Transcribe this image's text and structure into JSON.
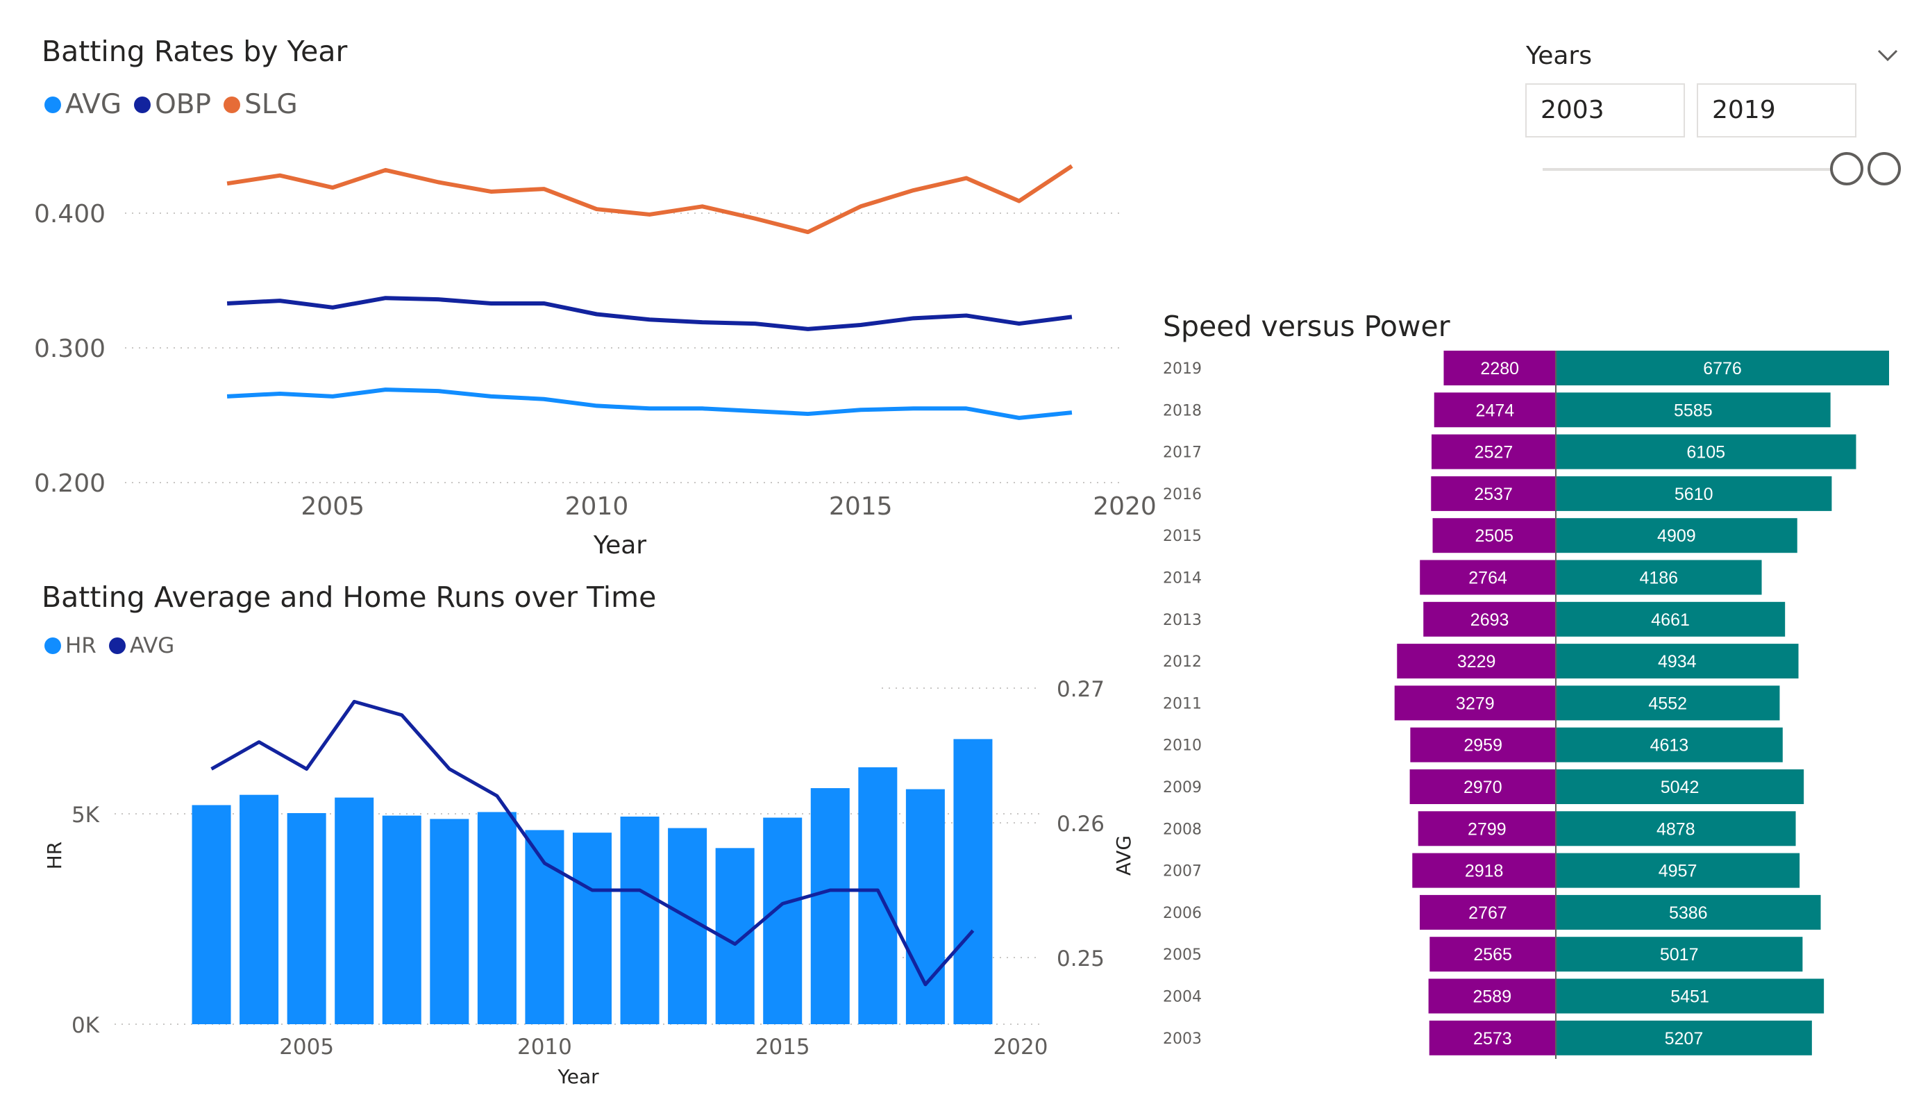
{
  "slicer": {
    "label": "Years",
    "start": "2003",
    "end": "2019",
    "icon": "chevron-down-icon"
  },
  "chart_data": [
    {
      "type": "line",
      "title": "Batting Rates by Year",
      "xlabel": "Year",
      "ylabel": "",
      "x": [
        2003,
        2004,
        2005,
        2006,
        2007,
        2008,
        2009,
        2010,
        2011,
        2012,
        2013,
        2014,
        2015,
        2016,
        2017,
        2018,
        2019
      ],
      "xticks": [
        "2005",
        "2010",
        "2015",
        "2020"
      ],
      "xlim": [
        2001,
        2020
      ],
      "yticks": [
        "0.200",
        "0.300",
        "0.400"
      ],
      "ylim": [
        0.2,
        0.45
      ],
      "grid": true,
      "legend": "top-left",
      "series": [
        {
          "name": "AVG",
          "color": "#118DFF",
          "values": [
            0.264,
            0.266,
            0.264,
            0.269,
            0.268,
            0.264,
            0.262,
            0.257,
            0.255,
            0.255,
            0.253,
            0.251,
            0.254,
            0.255,
            0.255,
            0.248,
            0.252
          ]
        },
        {
          "name": "OBP",
          "color": "#12239E",
          "values": [
            0.333,
            0.335,
            0.33,
            0.337,
            0.336,
            0.333,
            0.333,
            0.325,
            0.321,
            0.319,
            0.318,
            0.314,
            0.317,
            0.322,
            0.324,
            0.318,
            0.323
          ]
        },
        {
          "name": "SLG",
          "color": "#E66C37",
          "values": [
            0.422,
            0.428,
            0.419,
            0.432,
            0.423,
            0.416,
            0.418,
            0.403,
            0.399,
            0.405,
            0.396,
            0.386,
            0.405,
            0.417,
            0.426,
            0.409,
            0.435
          ]
        }
      ]
    },
    {
      "type": "bar",
      "title": "Batting Average and Home Runs over Time",
      "xlabel": "Year",
      "ylabel": "HR",
      "y2label": "AVG",
      "x": [
        2003,
        2004,
        2005,
        2006,
        2007,
        2008,
        2009,
        2010,
        2011,
        2012,
        2013,
        2014,
        2015,
        2016,
        2017,
        2018,
        2019
      ],
      "xticks": [
        "2005",
        "2010",
        "2015",
        "2020"
      ],
      "xlim": [
        2000.6,
        2020
      ],
      "yticks": [
        "0K",
        "5K"
      ],
      "ylim": [
        0,
        8000
      ],
      "y2ticks": [
        "0.25",
        "0.26",
        "0.27"
      ],
      "y2lim": [
        0.2425,
        0.2715
      ],
      "grid": true,
      "legend": "top-left",
      "series": [
        {
          "name": "HR",
          "color": "#118DFF",
          "kind": "bar",
          "values": [
            5207,
            5451,
            5017,
            5386,
            4957,
            4878,
            5042,
            4613,
            4552,
            4934,
            4661,
            4186,
            4909,
            5610,
            6105,
            5585,
            6776
          ]
        },
        {
          "name": "AVG",
          "color": "#12239E",
          "kind": "line",
          "values": [
            0.264,
            0.266,
            0.264,
            0.269,
            0.268,
            0.264,
            0.262,
            0.257,
            0.255,
            0.255,
            0.253,
            0.251,
            0.254,
            0.255,
            0.255,
            0.248,
            0.252
          ]
        }
      ]
    },
    {
      "type": "bar",
      "orientation": "horizontal-diverging",
      "title": "Speed versus Power",
      "categories": [
        "2019",
        "2018",
        "2017",
        "2016",
        "2015",
        "2014",
        "2013",
        "2012",
        "2011",
        "2010",
        "2009",
        "2008",
        "2007",
        "2006",
        "2005",
        "2004",
        "2003"
      ],
      "grid": false,
      "series": [
        {
          "name": "",
          "color": "#8B008B",
          "values": [
            2280,
            2474,
            2527,
            2537,
            2505,
            2764,
            2693,
            3229,
            3279,
            2959,
            2970,
            2799,
            2918,
            2767,
            2565,
            2589,
            2573
          ]
        },
        {
          "name": "",
          "color": "#008080",
          "values": [
            6776,
            5585,
            6105,
            5610,
            4909,
            4186,
            4661,
            4934,
            4552,
            4613,
            5042,
            4878,
            4957,
            5386,
            5017,
            5451,
            5207
          ]
        }
      ]
    }
  ]
}
